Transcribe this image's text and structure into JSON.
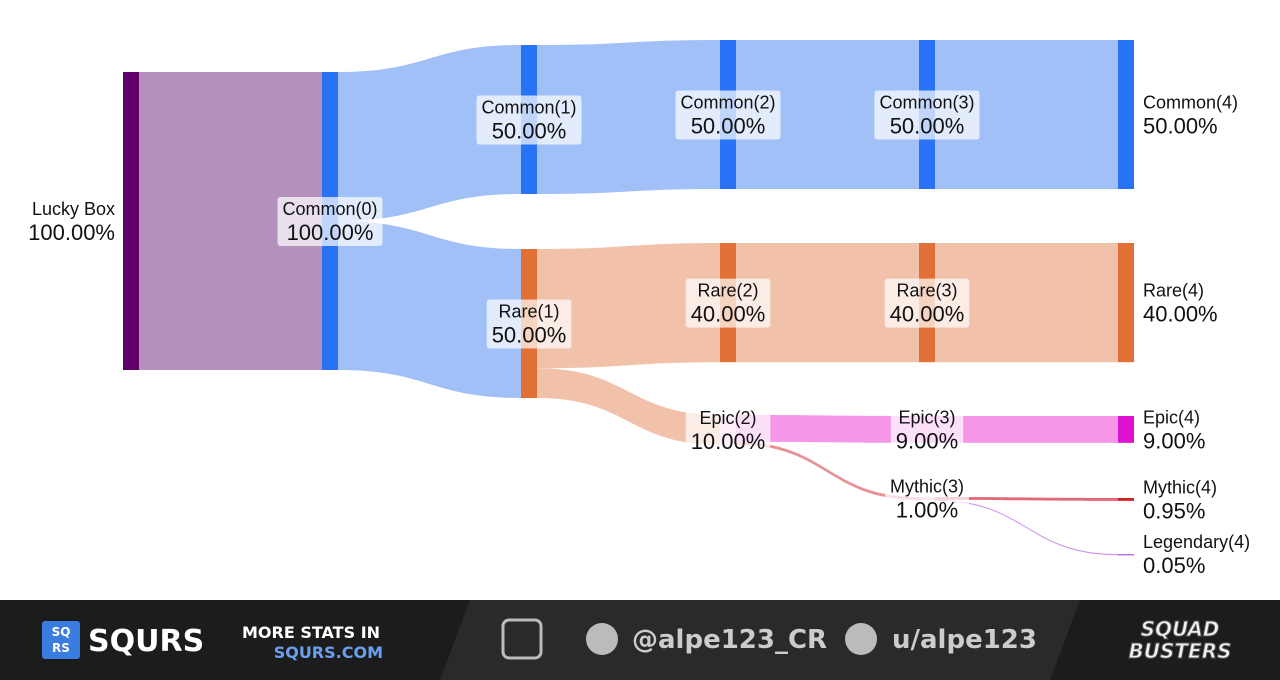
{
  "chart_data": {
    "type": "sankey",
    "nodes": [
      {
        "name": "Lucky Box",
        "value": 100,
        "value_label": "100.00%",
        "color": "#5e0068"
      },
      {
        "name": "Common(0)",
        "value": 100,
        "value_label": "100.00%",
        "color": "#2872f5"
      },
      {
        "name": "Common(1)",
        "value": 50,
        "value_label": "50.00%",
        "color": "#2872f5"
      },
      {
        "name": "Rare(1)",
        "value": 50,
        "value_label": "50.00%",
        "color": "#e07035"
      },
      {
        "name": "Common(2)",
        "value": 50,
        "value_label": "50.00%",
        "color": "#2872f5"
      },
      {
        "name": "Rare(2)",
        "value": 40,
        "value_label": "40.00%",
        "color": "#e07035"
      },
      {
        "name": "Epic(2)",
        "value": 10,
        "value_label": "10.00%",
        "color": "#f7c8ef"
      },
      {
        "name": "Common(3)",
        "value": 50,
        "value_label": "50.00%",
        "color": "#2872f5"
      },
      {
        "name": "Rare(3)",
        "value": 40,
        "value_label": "40.00%",
        "color": "#e07035"
      },
      {
        "name": "Epic(3)",
        "value": 9,
        "value_label": "9.00%",
        "color": "#f490e8"
      },
      {
        "name": "Mythic(3)",
        "value": 1,
        "value_label": "1.00%",
        "color": "#f5c0c4"
      },
      {
        "name": "Common(4)",
        "value": 50,
        "value_label": "50.00%",
        "color": "#2872f5"
      },
      {
        "name": "Rare(4)",
        "value": 40,
        "value_label": "40.00%",
        "color": "#e07035"
      },
      {
        "name": "Epic(4)",
        "value": 9,
        "value_label": "9.00%",
        "color": "#e010d0"
      },
      {
        "name": "Mythic(4)",
        "value": 0.95,
        "value_label": "0.95%",
        "color": "#d02020"
      },
      {
        "name": "Legendary(4)",
        "value": 0.05,
        "value_label": "0.05%",
        "color": "#c070f0"
      }
    ],
    "links": [
      {
        "source": 0,
        "target": 1,
        "value": 100,
        "color": "#b08bb8"
      },
      {
        "source": 1,
        "target": 2,
        "value": 50,
        "color": "#9dbdf8"
      },
      {
        "source": 1,
        "target": 3,
        "value": 50,
        "color": "#9dbdf8"
      },
      {
        "source": 2,
        "target": 4,
        "value": 50,
        "color": "#9dbdf8"
      },
      {
        "source": 3,
        "target": 5,
        "value": 40,
        "color": "#f0bea4"
      },
      {
        "source": 3,
        "target": 6,
        "value": 10,
        "color": "#f0bea4"
      },
      {
        "source": 4,
        "target": 7,
        "value": 50,
        "color": "#9dbdf8"
      },
      {
        "source": 5,
        "target": 8,
        "value": 40,
        "color": "#f0bea4"
      },
      {
        "source": 6,
        "target": 9,
        "value": 9,
        "color": "#f490e8"
      },
      {
        "source": 6,
        "target": 10,
        "value": 1,
        "color": "#e88890"
      },
      {
        "source": 7,
        "target": 11,
        "value": 50,
        "color": "#9dbdf8"
      },
      {
        "source": 8,
        "target": 12,
        "value": 40,
        "color": "#f0bea4"
      },
      {
        "source": 9,
        "target": 13,
        "value": 9,
        "color": "#f490e8"
      },
      {
        "source": 10,
        "target": 14,
        "value": 0.95,
        "color": "#e06070"
      },
      {
        "source": 10,
        "target": 15,
        "value": 0.05,
        "color": "#d090f0"
      }
    ]
  },
  "footer": {
    "brand": "SQURS",
    "icon_top": "SQ",
    "icon_bottom": "RS",
    "promo": "MORE STATS IN",
    "site": "SQURS.COM",
    "twitter": "@alpe123_CR",
    "reddit": "u/alpe123",
    "game_top": "SQUAD",
    "game_bottom": "BUSTERS"
  }
}
